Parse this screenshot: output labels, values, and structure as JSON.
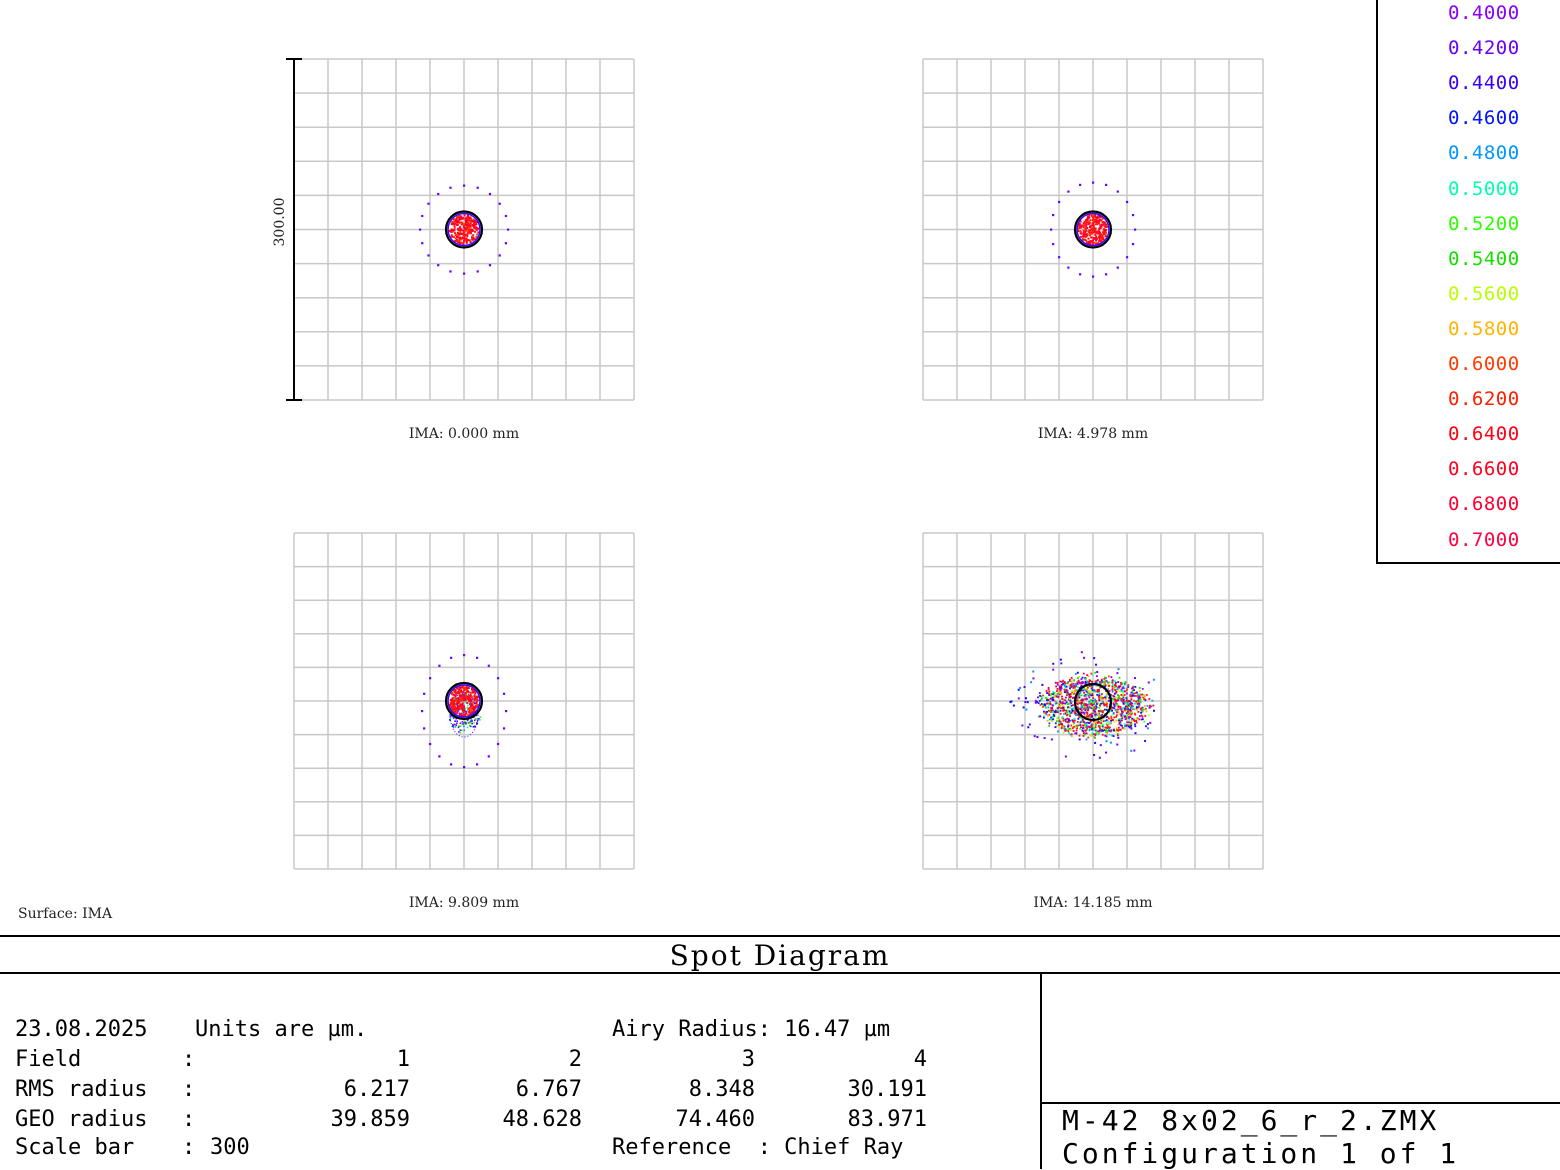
{
  "chart_data": {
    "type": "scatter",
    "title": "Spot Diagram",
    "units": "µm",
    "scale_bar": "300.00",
    "grid": true,
    "legend_position": "top-right",
    "wavelengths": [
      {
        "label": "0.4000",
        "color": "#8a00ff"
      },
      {
        "label": "0.4200",
        "color": "#6a00ff"
      },
      {
        "label": "0.4400",
        "color": "#3a00ff"
      },
      {
        "label": "0.4600",
        "color": "#0014ff"
      },
      {
        "label": "0.4800",
        "color": "#0096ff"
      },
      {
        "label": "0.5000",
        "color": "#00ffb0"
      },
      {
        "label": "0.5200",
        "color": "#2aff00"
      },
      {
        "label": "0.5400",
        "color": "#14e000"
      },
      {
        "label": "0.5600",
        "color": "#b8ff00"
      },
      {
        "label": "0.5800",
        "color": "#ffb400"
      },
      {
        "label": "0.6000",
        "color": "#ff3c00"
      },
      {
        "label": "0.6200",
        "color": "#ff1e00"
      },
      {
        "label": "0.6400",
        "color": "#ff0014"
      },
      {
        "label": "0.6600",
        "color": "#ff0020"
      },
      {
        "label": "0.6800",
        "color": "#ff0030"
      },
      {
        "label": "0.7000",
        "color": "#ff0040"
      }
    ],
    "fields": [
      {
        "label": "IMA: 0.000 mm",
        "rms": 6.217,
        "geo": 39.859,
        "spread_x": 30,
        "spread_y": 30,
        "offset_y": 0
      },
      {
        "label": "IMA: 4.978 mm",
        "rms": 6.767,
        "geo": 48.628,
        "spread_x": 28,
        "spread_y": 33,
        "offset_y": 0
      },
      {
        "label": "IMA: 9.809 mm",
        "rms": 8.348,
        "geo": 74.46,
        "spread_x": 28,
        "spread_y": 42,
        "offset_y": 10
      },
      {
        "label": "IMA: 14.185 mm",
        "rms": 30.191,
        "geo": 83.971,
        "spread_x": 53,
        "spread_y": 30,
        "offset_y": 0
      }
    ]
  },
  "surface_label": "Surface: IMA",
  "panel": {
    "date": "23.08.2025",
    "units_text": "Units are µm.",
    "airy": "Airy Radius: 16.47 µm",
    "field_label": "Field",
    "rms_label": "RMS radius",
    "geo_label": "GEO radius",
    "scale_label": "Scale bar",
    "colon": ":",
    "field_values": [
      "1",
      "2",
      "3",
      "4"
    ],
    "rms_values": [
      "6.217",
      "6.767",
      "8.348",
      "30.191"
    ],
    "geo_values": [
      "39.859",
      "48.628",
      "74.460",
      "83.971"
    ],
    "scale_value": "300",
    "reference": "Reference  : Chief Ray",
    "filename": "M-42 8x02_6_r_2.ZMX",
    "config": "Configuration 1 of 1"
  }
}
